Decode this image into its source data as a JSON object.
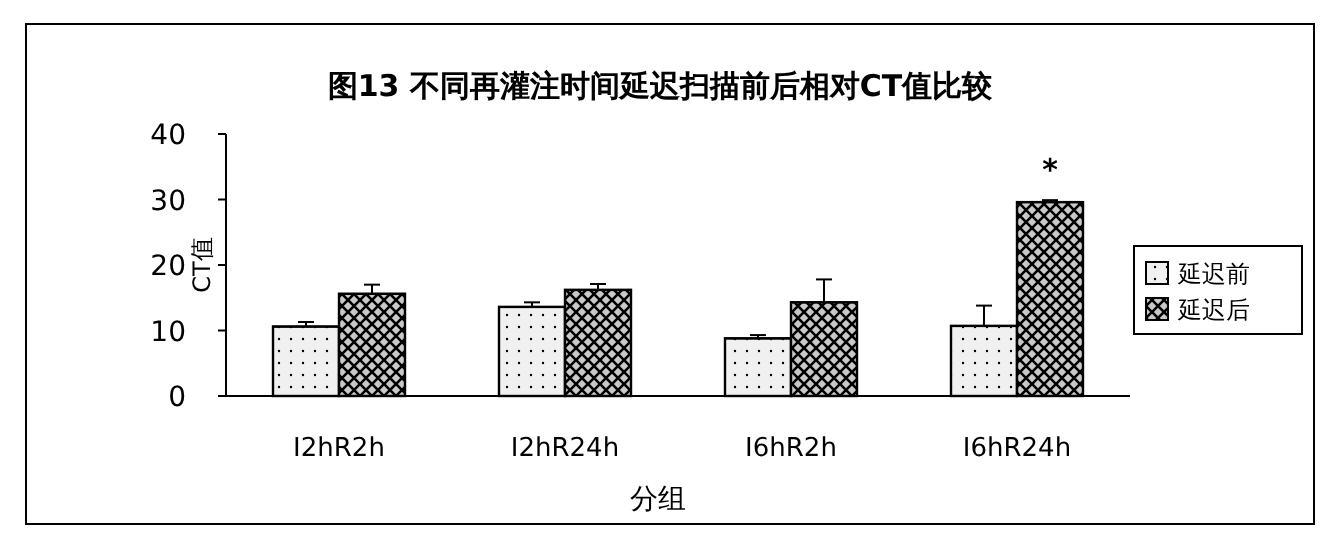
{
  "chart_data": {
    "type": "bar",
    "title": "图13 不同再灌注时间延迟扫描前后相对CT值比较",
    "xlabel": "分组",
    "ylabel": "CT值",
    "categories": [
      "I2hR2h",
      "I2hR24h",
      "I6hR2h",
      "I6hR24h"
    ],
    "series": [
      {
        "name": "延迟前",
        "color": "#f0f0f0",
        "values": [
          10.6,
          13.6,
          8.8,
          10.7
        ],
        "errors": [
          [
            10.6,
            11.3
          ],
          [
            13.6,
            14.3
          ],
          [
            8.8,
            9.3
          ],
          [
            10.7,
            13.8
          ]
        ]
      },
      {
        "name": "延迟后",
        "color": "#c8c8c8",
        "values": [
          15.6,
          16.2,
          14.3,
          29.6
        ],
        "errors": [
          [
            15.6,
            17.0
          ],
          [
            16.2,
            17.1
          ],
          [
            14.3,
            17.8
          ],
          [
            29.6,
            29.9
          ]
        ]
      }
    ],
    "annotations": [
      "*"
    ],
    "ylim": [
      0,
      40
    ],
    "yticks": [
      0,
      10,
      20,
      30,
      40
    ],
    "grid": false,
    "legend": "right"
  }
}
